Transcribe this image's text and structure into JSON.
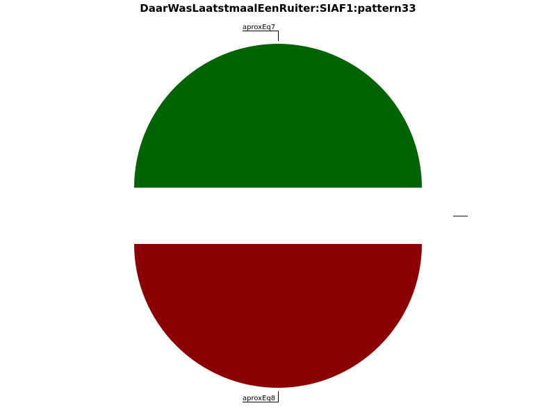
{
  "chart_data": {
    "type": "pie",
    "title": "DaarWasLaatstmaalEenRuiter:SIAF1:pattern33",
    "slices": [
      {
        "label": "aproxEq7",
        "value": 50,
        "color": "#006400"
      },
      {
        "label": "aproxEq8",
        "value": 50,
        "color": "#8b0000"
      }
    ],
    "legend": "none"
  }
}
